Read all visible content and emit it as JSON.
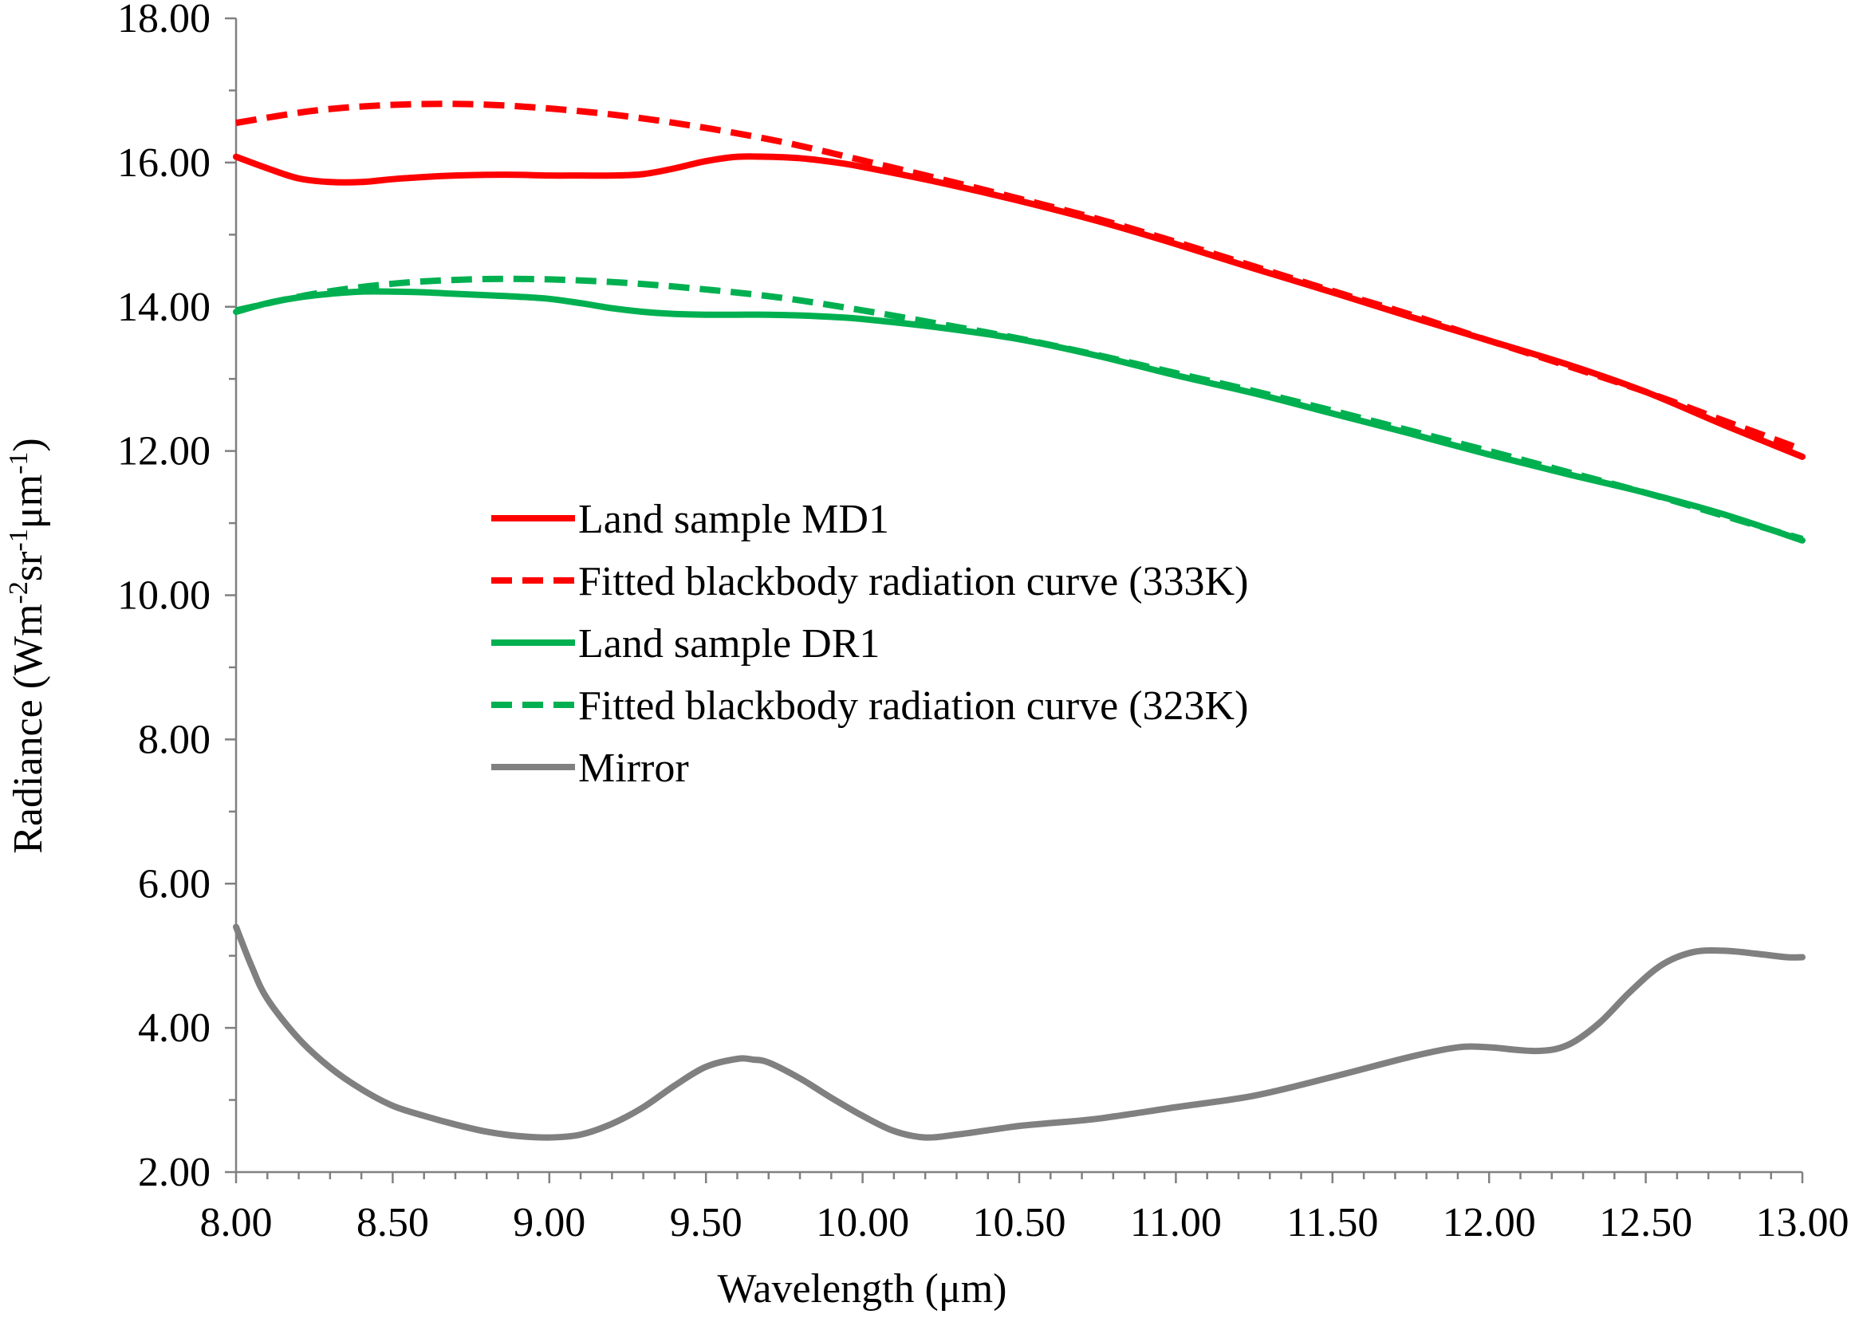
{
  "chart_data": {
    "type": "line",
    "xlabel": "Wavelength (μm)",
    "ylabel": {
      "prefix": "Radiance (Wm",
      "sup1": "-2",
      "mid1": "sr",
      "sup2": "-1",
      "mid2": "μm",
      "sup3": "-1",
      "suffix": ")"
    },
    "xlim": [
      8.0,
      13.0
    ],
    "ylim": [
      2.0,
      18.0
    ],
    "x_ticks": [
      "8.00",
      "8.50",
      "9.00",
      "9.50",
      "10.00",
      "10.50",
      "11.00",
      "11.50",
      "12.00",
      "12.50",
      "13.00"
    ],
    "y_ticks": [
      "2.00",
      "4.00",
      "6.00",
      "8.00",
      "10.00",
      "12.00",
      "14.00",
      "16.00",
      "18.00"
    ],
    "grid": false,
    "legend_position": "center-left",
    "series": [
      {
        "name": "Land sample MD1",
        "color": "#ff0000",
        "style": "solid",
        "x": [
          8.0,
          8.1,
          8.2,
          8.3,
          8.4,
          8.5,
          8.6,
          8.7,
          8.8,
          8.9,
          9.0,
          9.1,
          9.2,
          9.3,
          9.4,
          9.5,
          9.6,
          9.7,
          9.8,
          9.9,
          10.0,
          10.25,
          10.5,
          10.75,
          11.0,
          11.25,
          11.5,
          11.75,
          12.0,
          12.25,
          12.5,
          12.75,
          13.0
        ],
        "values": [
          16.08,
          15.92,
          15.78,
          15.73,
          15.73,
          15.77,
          15.8,
          15.82,
          15.83,
          15.83,
          15.82,
          15.82,
          15.82,
          15.84,
          15.92,
          16.02,
          16.08,
          16.08,
          16.06,
          16.01,
          15.94,
          15.72,
          15.47,
          15.19,
          14.87,
          14.53,
          14.2,
          13.86,
          13.53,
          13.2,
          12.82,
          12.36,
          11.92
        ]
      },
      {
        "name": "Fitted blackbody radiation curve (333K)",
        "color": "#ff0000",
        "style": "dashed",
        "x": [
          8.0,
          8.25,
          8.5,
          8.75,
          9.0,
          9.25,
          9.5,
          9.75,
          10.0,
          10.25,
          10.5,
          10.75,
          11.0,
          11.25,
          11.5,
          11.75,
          12.0,
          12.25,
          12.5,
          12.75,
          13.0
        ],
        "values": [
          16.55,
          16.72,
          16.8,
          16.81,
          16.75,
          16.64,
          16.48,
          16.28,
          16.03,
          15.77,
          15.5,
          15.22,
          14.9,
          14.56,
          14.22,
          13.89,
          13.53,
          13.18,
          12.82,
          12.42,
          12.02
        ]
      },
      {
        "name": "Land sample DR1",
        "color": "#00b050",
        "style": "solid",
        "x": [
          8.0,
          8.1,
          8.2,
          8.3,
          8.4,
          8.5,
          8.6,
          8.7,
          8.8,
          8.9,
          9.0,
          9.1,
          9.2,
          9.3,
          9.4,
          9.5,
          9.6,
          9.7,
          9.8,
          9.9,
          10.0,
          10.25,
          10.5,
          10.75,
          11.0,
          11.25,
          11.5,
          11.75,
          12.0,
          12.25,
          12.5,
          12.75,
          13.0
        ],
        "values": [
          13.93,
          14.05,
          14.13,
          14.18,
          14.21,
          14.21,
          14.2,
          14.18,
          14.16,
          14.14,
          14.11,
          14.05,
          13.98,
          13.93,
          13.9,
          13.89,
          13.89,
          13.89,
          13.88,
          13.86,
          13.83,
          13.71,
          13.55,
          13.32,
          13.05,
          12.8,
          12.52,
          12.24,
          11.95,
          11.68,
          11.42,
          11.12,
          10.76
        ]
      },
      {
        "name": "Fitted blackbody radiation curve (323K)",
        "color": "#00b050",
        "style": "dashed",
        "x": [
          8.0,
          8.25,
          8.5,
          8.75,
          9.0,
          9.25,
          9.5,
          9.75,
          10.0,
          10.25,
          10.5,
          10.75,
          11.0,
          11.25,
          11.5,
          11.75,
          12.0,
          12.25,
          12.5,
          12.75,
          13.0
        ],
        "values": [
          13.95,
          14.18,
          14.32,
          14.38,
          14.38,
          14.33,
          14.24,
          14.12,
          13.95,
          13.76,
          13.56,
          13.33,
          13.08,
          12.83,
          12.56,
          12.28,
          12.0,
          11.71,
          11.42,
          11.1,
          10.78
        ]
      },
      {
        "name": "Mirror",
        "color": "#808080",
        "style": "solid",
        "x": [
          8.0,
          8.05,
          8.1,
          8.2,
          8.3,
          8.4,
          8.5,
          8.6,
          8.7,
          8.8,
          8.9,
          9.0,
          9.1,
          9.2,
          9.3,
          9.4,
          9.5,
          9.6,
          9.65,
          9.7,
          9.8,
          9.9,
          10.0,
          10.1,
          10.2,
          10.3,
          10.4,
          10.5,
          10.6,
          10.75,
          11.0,
          11.25,
          11.5,
          11.75,
          11.9,
          12.0,
          12.15,
          12.25,
          12.35,
          12.45,
          12.55,
          12.65,
          12.75,
          12.85,
          12.95,
          13.0
        ],
        "values": [
          5.4,
          4.85,
          4.4,
          3.85,
          3.45,
          3.15,
          2.92,
          2.78,
          2.66,
          2.56,
          2.5,
          2.48,
          2.52,
          2.67,
          2.9,
          3.2,
          3.46,
          3.57,
          3.56,
          3.52,
          3.3,
          3.03,
          2.78,
          2.57,
          2.48,
          2.52,
          2.58,
          2.64,
          2.68,
          2.74,
          2.9,
          3.06,
          3.32,
          3.6,
          3.73,
          3.73,
          3.68,
          3.76,
          4.06,
          4.5,
          4.87,
          5.05,
          5.07,
          5.03,
          4.98,
          4.98
        ]
      }
    ]
  }
}
